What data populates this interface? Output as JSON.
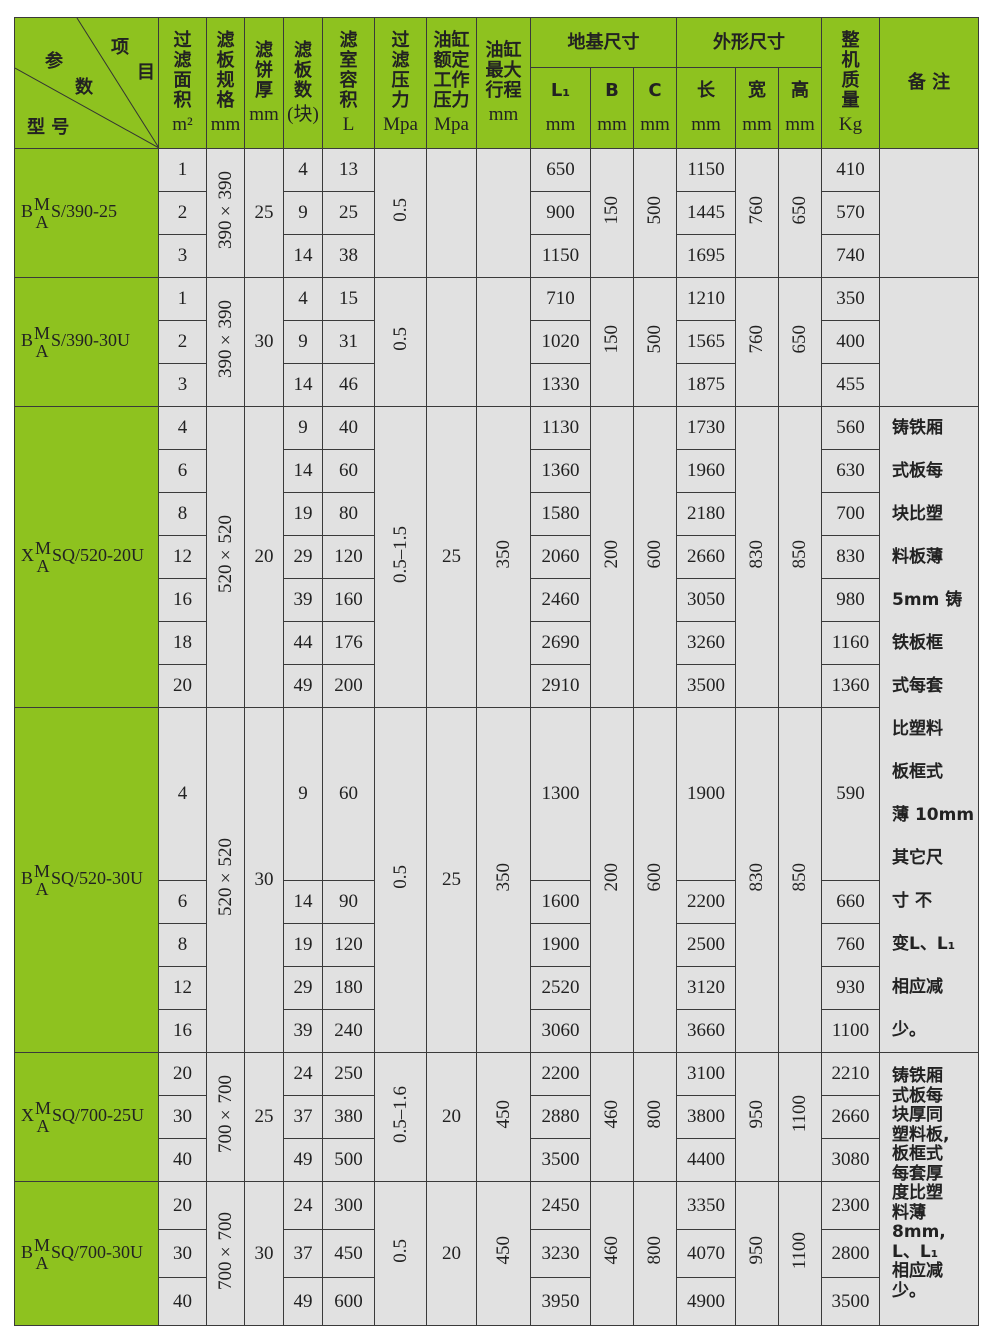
{
  "colors": {
    "header_bg": "#8ec21f",
    "body_bg": "#e1e1e1"
  },
  "header": {
    "corner": {
      "item1": "项",
      "item2": "目",
      "param1": "参",
      "param2": "数",
      "model": "型 号"
    },
    "cols": [
      {
        "label": "过\n滤\n面\n积",
        "unit": "m²"
      },
      {
        "label": "滤\n板\n规\n格",
        "unit": "mm"
      },
      {
        "label": "滤\n饼\n厚",
        "unit": "mm"
      },
      {
        "label": "滤\n板\n数",
        "unit": "(块)"
      },
      {
        "label": "滤\n室\n容\n积",
        "unit": "L"
      },
      {
        "label": "过\n滤\n压\n力",
        "unit": "Mpa"
      },
      {
        "label": "油缸\n额定\n工作\n压力",
        "unit": "Mpa"
      },
      {
        "label": "油缸\n最大\n行程",
        "unit": "mm"
      }
    ],
    "foundation": {
      "label": "地基尺寸",
      "sub": [
        {
          "label": "L₁",
          "unit": "mm"
        },
        {
          "label": "B",
          "unit": "mm"
        },
        {
          "label": "C",
          "unit": "mm"
        }
      ]
    },
    "outline": {
      "label": "外形尺寸",
      "sub": [
        {
          "label": "长",
          "unit": "mm"
        },
        {
          "label": "宽",
          "unit": "mm"
        },
        {
          "label": "高",
          "unit": "mm"
        }
      ]
    },
    "weight": {
      "label": "整\n机\n质\n量",
      "unit": "Kg"
    },
    "remarks": {
      "label": "备 注"
    }
  },
  "groups": [
    {
      "model": {
        "prefix": "B",
        "sup": "M",
        "sub": "A",
        "suffix": "S/390-25"
      },
      "area": [
        "1",
        "2",
        "3"
      ],
      "spec": "390×390",
      "cake": "25",
      "plates": [
        "4",
        "9",
        "14"
      ],
      "volume": [
        "13",
        "25",
        "38"
      ],
      "pressure": "0.5",
      "cyl_pressure": "",
      "stroke": "",
      "L1": [
        "650",
        "900",
        "1150"
      ],
      "B": "150",
      "C": "500",
      "length": [
        "1150",
        "1445",
        "1695"
      ],
      "width": "760",
      "height": "650",
      "weight": [
        "410",
        "570",
        "740"
      ]
    },
    {
      "model": {
        "prefix": "B",
        "sup": "M",
        "sub": "A",
        "suffix": "S/390-30U"
      },
      "area": [
        "1",
        "2",
        "3"
      ],
      "spec": "390×390",
      "cake": "30",
      "plates": [
        "4",
        "9",
        "14"
      ],
      "volume": [
        "15",
        "31",
        "46"
      ],
      "pressure": "0.5",
      "cyl_pressure": "",
      "stroke": "",
      "L1": [
        "710",
        "1020",
        "1330"
      ],
      "B": "150",
      "C": "500",
      "length": [
        "1210",
        "1565",
        "1875"
      ],
      "width": "760",
      "height": "650",
      "weight": [
        "350",
        "400",
        "455"
      ]
    },
    {
      "model": {
        "prefix": "X",
        "sup": "M",
        "sub": "A",
        "suffix": "SQ/520-20U"
      },
      "area": [
        "4",
        "6",
        "8",
        "12",
        "16",
        "18",
        "20"
      ],
      "spec": "520×520",
      "cake": "20",
      "plates": [
        "9",
        "14",
        "19",
        "29",
        "39",
        "44",
        "49"
      ],
      "volume": [
        "40",
        "60",
        "80",
        "120",
        "160",
        "176",
        "200"
      ],
      "pressure": "0.5–1.5",
      "cyl_pressure": "25",
      "stroke": "350",
      "L1": [
        "1130",
        "1360",
        "1580",
        "2060",
        "2460",
        "2690",
        "2910"
      ],
      "B": "200",
      "C": "600",
      "length": [
        "1730",
        "1960",
        "2180",
        "2660",
        "3050",
        "3260",
        "3500"
      ],
      "width": "830",
      "height": "850",
      "weight": [
        "560",
        "630",
        "700",
        "830",
        "980",
        "1160",
        "1360"
      ]
    },
    {
      "model": {
        "prefix": "B",
        "sup": "M",
        "sub": "A",
        "suffix": "SQ/520-30U"
      },
      "area": [
        "4",
        "6",
        "8",
        "12",
        "16"
      ],
      "spec": "520×520",
      "cake": "30",
      "plates": [
        "9",
        "14",
        "19",
        "29",
        "39"
      ],
      "volume": [
        "60",
        "90",
        "120",
        "180",
        "240"
      ],
      "pressure": "0.5",
      "cyl_pressure": "25",
      "stroke": "350",
      "L1": [
        "1300",
        "1600",
        "1900",
        "2520",
        "3060"
      ],
      "B": "200",
      "C": "600",
      "length": [
        "1900",
        "2200",
        "2500",
        "3120",
        "3660"
      ],
      "width": "830",
      "height": "850",
      "weight": [
        "590",
        "660",
        "760",
        "930",
        "1100"
      ]
    },
    {
      "model": {
        "prefix": "X",
        "sup": "M",
        "sub": "A",
        "suffix": "SQ/700-25U"
      },
      "area": [
        "20",
        "30",
        "40"
      ],
      "spec": "700×700",
      "cake": "25",
      "plates": [
        "24",
        "37",
        "49"
      ],
      "volume": [
        "250",
        "380",
        "500"
      ],
      "pressure": "0.5–1.6",
      "cyl_pressure": "20",
      "stroke": "450",
      "L1": [
        "2200",
        "2880",
        "3500"
      ],
      "B": "460",
      "C": "800",
      "length": [
        "3100",
        "3800",
        "4400"
      ],
      "width": "950",
      "height": "1100",
      "weight": [
        "2210",
        "2660",
        "3080"
      ]
    },
    {
      "model": {
        "prefix": "B",
        "sup": "M",
        "sub": "A",
        "suffix": "SQ/700-30U"
      },
      "area": [
        "20",
        "30",
        "40"
      ],
      "spec": "700×700",
      "cake": "30",
      "plates": [
        "24",
        "37",
        "49"
      ],
      "volume": [
        "300",
        "450",
        "600"
      ],
      "pressure": "0.5",
      "cyl_pressure": "20",
      "stroke": "450",
      "L1": [
        "2450",
        "3230",
        "3950"
      ],
      "B": "460",
      "C": "800",
      "length": [
        "3350",
        "4070",
        "4900"
      ],
      "width": "950",
      "height": "1100",
      "weight": [
        "2300",
        "2800",
        "3500"
      ]
    }
  ],
  "notes": [
    {
      "lines": [
        "铸铁厢",
        "式板每",
        "块比塑",
        "料板薄",
        "5mm 铸",
        "铁板框",
        "式每套",
        "比塑料",
        "板框式",
        "薄 10mm",
        "其它尺",
        "寸  不",
        "变L、L₁",
        "相应减",
        "少。"
      ]
    },
    {
      "lines": [
        "铸铁厢",
        "式板每",
        "块厚同",
        "塑料板,",
        "板框式",
        "每套厚",
        "度比塑",
        "料薄",
        "8mm,",
        "L、L₁",
        "相应减",
        "少。"
      ]
    }
  ]
}
